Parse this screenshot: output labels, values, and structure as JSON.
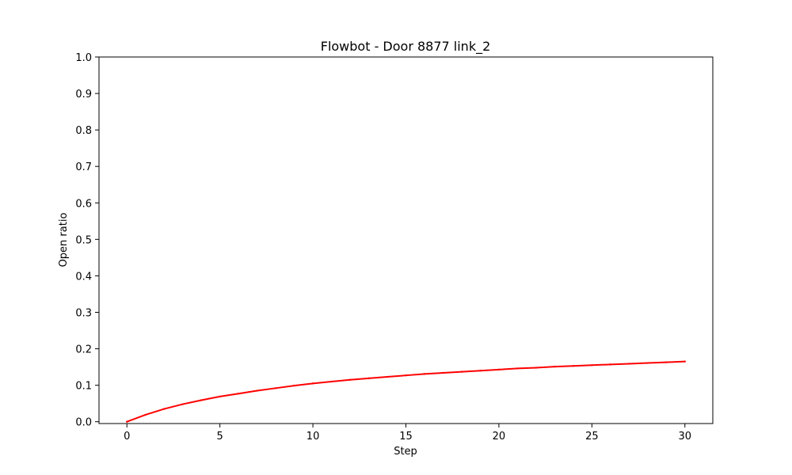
{
  "chart_data": {
    "type": "line",
    "title": "Flowbot - Door 8877 link_2",
    "xlabel": "Step",
    "ylabel": "Open ratio",
    "xlim": [
      -1.5,
      31.5
    ],
    "ylim": [
      -0.005,
      1.0
    ],
    "x_ticks": [
      0,
      5,
      10,
      15,
      20,
      25,
      30
    ],
    "y_ticks": [
      0.0,
      0.1,
      0.2,
      0.3,
      0.4,
      0.5,
      0.6,
      0.7,
      0.8,
      0.9,
      1.0
    ],
    "x_tick_labels": [
      "0",
      "5",
      "10",
      "15",
      "20",
      "25",
      "30"
    ],
    "y_tick_labels": [
      "0.0",
      "0.1",
      "0.2",
      "0.3",
      "0.4",
      "0.5",
      "0.6",
      "0.7",
      "0.8",
      "0.9",
      "1.0"
    ],
    "grid": false,
    "series": [
      {
        "color": "#ff0000",
        "x": [
          0,
          1,
          2,
          3,
          4,
          5,
          6,
          7,
          8,
          9,
          10,
          11,
          12,
          13,
          14,
          15,
          16,
          17,
          18,
          19,
          20,
          21,
          22,
          23,
          24,
          25,
          26,
          27,
          28,
          29,
          30
        ],
        "y": [
          0.0,
          0.019,
          0.035,
          0.048,
          0.059,
          0.069,
          0.077,
          0.085,
          0.092,
          0.099,
          0.105,
          0.11,
          0.115,
          0.119,
          0.123,
          0.127,
          0.131,
          0.134,
          0.137,
          0.14,
          0.143,
          0.146,
          0.148,
          0.151,
          0.153,
          0.155,
          0.157,
          0.159,
          0.161,
          0.163,
          0.165
        ]
      }
    ]
  }
}
